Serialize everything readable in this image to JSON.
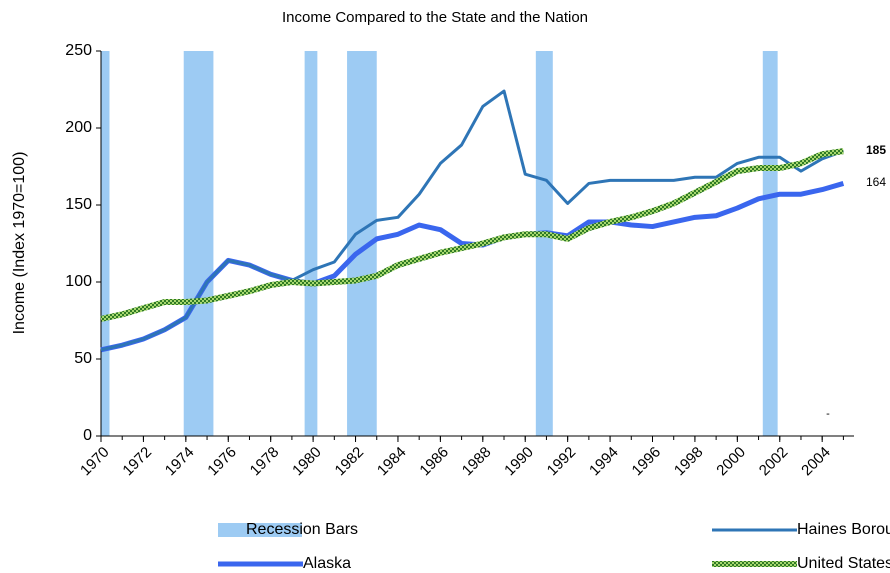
{
  "chart_data": {
    "type": "line",
    "title": "Income Compared to the State and the Nation",
    "y_label": "Income (Index 1970=100)",
    "annotation": "-",
    "x": [
      1970,
      1971,
      1972,
      1973,
      1974,
      1975,
      1976,
      1977,
      1978,
      1979,
      1980,
      1981,
      1982,
      1983,
      1984,
      1985,
      1986,
      1987,
      1988,
      1989,
      1990,
      1991,
      1992,
      1993,
      1994,
      1995,
      1996,
      1997,
      1998,
      1999,
      2000,
      2001,
      2002,
      2003,
      2004,
      2005
    ],
    "xlim": [
      1970,
      2005.5
    ],
    "xticks": [
      1970,
      1972,
      1974,
      1976,
      1978,
      1980,
      1982,
      1984,
      1986,
      1988,
      1990,
      1992,
      1994,
      1996,
      1998,
      2000,
      2002,
      2004
    ],
    "ylim": [
      0,
      250
    ],
    "yticks": [
      0,
      50,
      100,
      150,
      200,
      250
    ],
    "series": [
      {
        "name": "Recession Bars",
        "style": "band",
        "color": "#9dcbf3",
        "bands": [
          [
            1970,
            1970.4
          ],
          [
            1973.9,
            1975.3
          ],
          [
            1979.6,
            1980.2
          ],
          [
            1981.6,
            1983
          ],
          [
            1990.5,
            1991.3
          ],
          [
            2001.2,
            2001.9
          ]
        ]
      },
      {
        "name": "Haines Borough, Alaska",
        "style": "line",
        "color": "#2e75b6",
        "width": 3,
        "end_label_bold": true,
        "values": [
          56,
          59,
          63,
          69,
          77,
          100,
          114,
          111,
          105,
          101,
          108,
          113,
          131,
          140,
          142,
          157,
          177,
          189,
          214,
          224,
          170,
          166,
          151,
          164,
          166,
          166,
          166,
          166,
          168,
          168,
          177,
          181,
          181,
          172,
          180,
          185
        ]
      },
      {
        "name": "Alaska",
        "style": "line",
        "color": "#3a66ee",
        "width": 5,
        "end_label_bold": false,
        "values": [
          56,
          59,
          63,
          69,
          77,
          100,
          114,
          111,
          105,
          101,
          99,
          104,
          118,
          128,
          131,
          137,
          134,
          125,
          124,
          129,
          131,
          132,
          130,
          139,
          139,
          137,
          136,
          139,
          142,
          143,
          148,
          154,
          157,
          157,
          160,
          164
        ]
      },
      {
        "name": "United States",
        "style": "checkered",
        "color": "#3a8a2e",
        "width": 6,
        "values": [
          76,
          79,
          83,
          87,
          87,
          88,
          91,
          94,
          98,
          100,
          99,
          100,
          101,
          104,
          111,
          115,
          119,
          122,
          125,
          129,
          131,
          131,
          128,
          135,
          139,
          142,
          146,
          151,
          158,
          165,
          172,
          174,
          174,
          177,
          183,
          185
        ]
      }
    ]
  }
}
